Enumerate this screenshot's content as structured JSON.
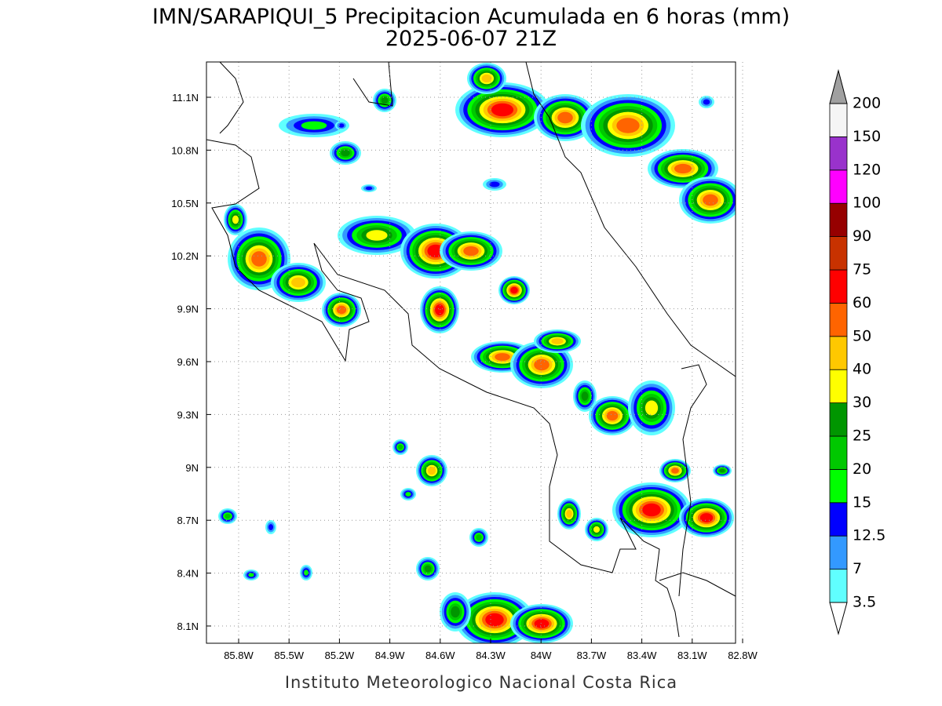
{
  "title": "IMN/SARAPIQUI_5 Precipitacion Acumulada en 6 horas (mm)",
  "subtitle": "2025-06-07 21Z",
  "footer": "Instituto Meteorologico Nacional Costa Rica",
  "lon_ticks": [
    "85.8W",
    "85.5W",
    "85.2W",
    "84.9W",
    "84.6W",
    "84.3W",
    "84W",
    "83.7W",
    "83.4W",
    "83.1W",
    "82.8W"
  ],
  "lat_ticks": [
    "11.1N",
    "10.8N",
    "10.5N",
    "10.2N",
    "9.9N",
    "9.6N",
    "9.3N",
    "9N",
    "8.7N",
    "8.4N",
    "8.1N"
  ],
  "colorbar": {
    "levels": [
      3.5,
      7,
      12.5,
      15,
      20,
      25,
      30,
      40,
      50,
      60,
      75,
      90,
      100,
      120,
      150,
      200
    ],
    "colors": [
      "#60ffff",
      "#3399ff",
      "#0000ff",
      "#00ff00",
      "#00c800",
      "#009600",
      "#ffff00",
      "#ffc800",
      "#ff6400",
      "#ff0000",
      "#c83200",
      "#960000",
      "#ff00ff",
      "#9932cc",
      "#f5f5f5"
    ],
    "under_color": "#ffffff",
    "over_color": "#a0a0a0"
  }
}
